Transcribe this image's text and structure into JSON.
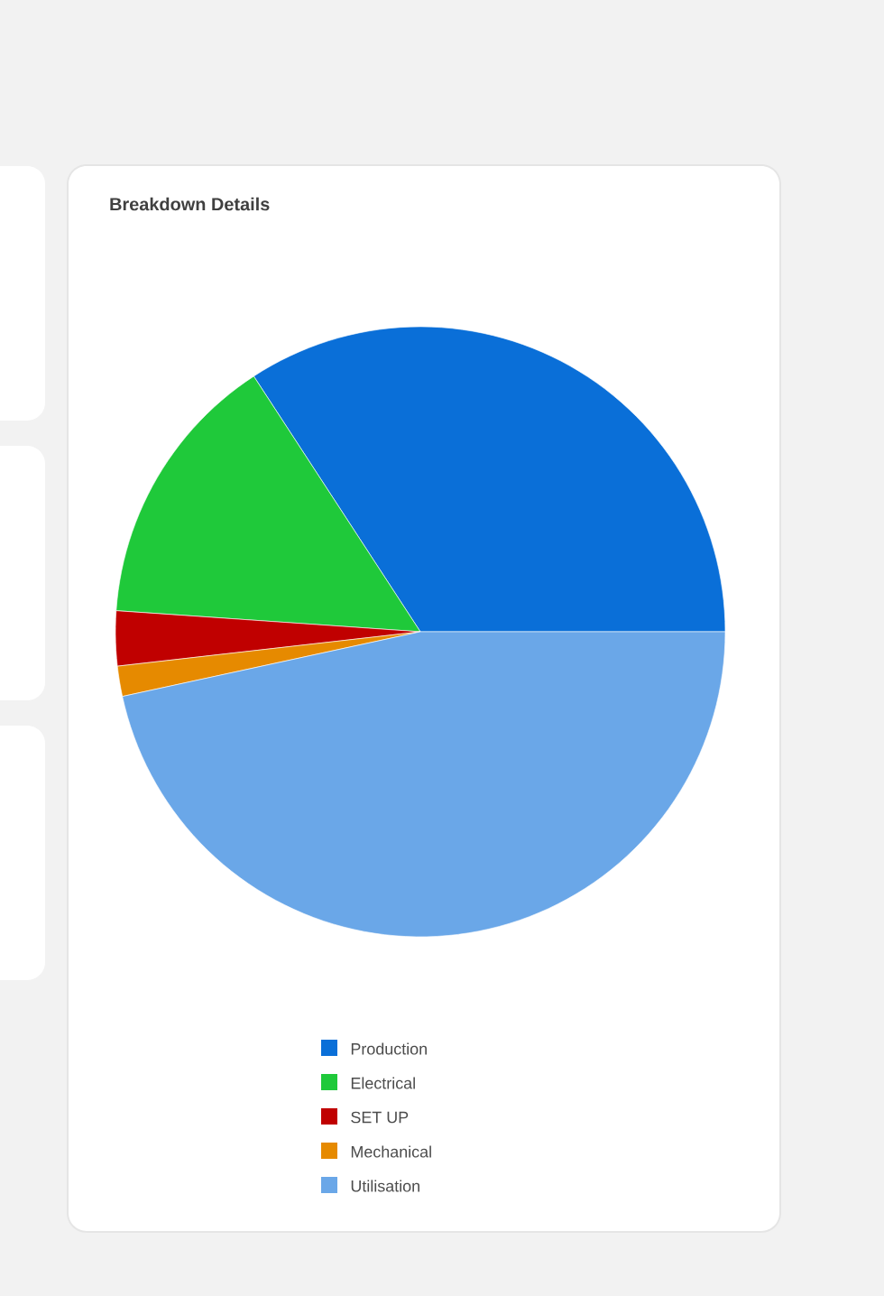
{
  "chart_data": {
    "type": "pie",
    "title": "Breakdown Details",
    "categories": [
      "Production",
      "Electrical",
      "SET UP",
      "Mechanical",
      "Utilisation"
    ],
    "values": [
      34.2,
      14.7,
      2.9,
      1.6,
      46.6
    ],
    "colors": [
      "#0a6fd8",
      "#1fc93a",
      "#c00000",
      "#e68a00",
      "#6aa7e8"
    ],
    "legend": "bottom"
  }
}
